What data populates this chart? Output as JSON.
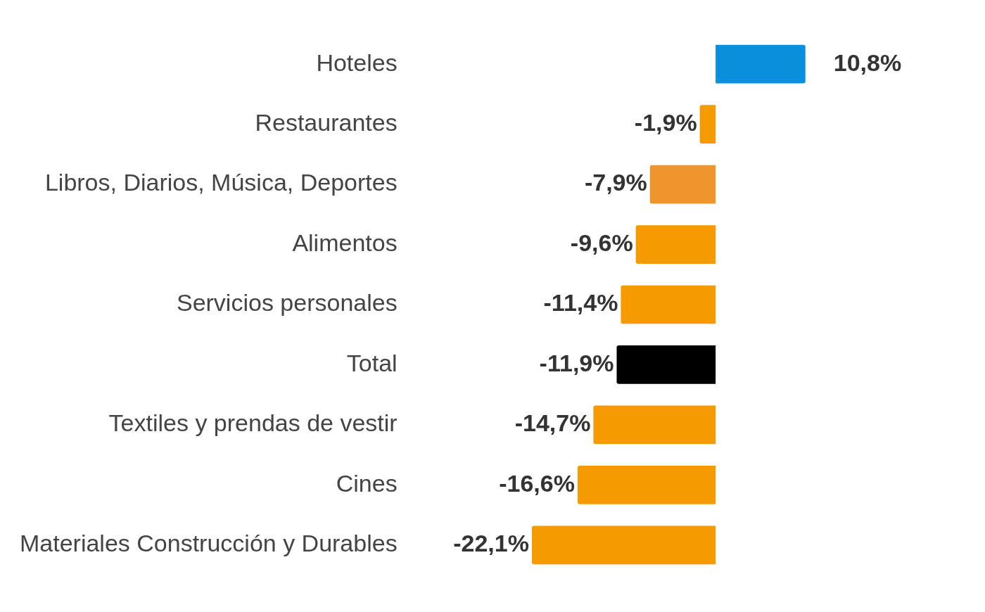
{
  "chart_data": {
    "type": "bar",
    "orientation": "horizontal",
    "categories": [
      "Hoteles",
      "Restaurantes",
      "Libros, Diarios, Música, Deportes",
      "Alimentos",
      "Servicios personales",
      "Total",
      "Textiles y prendas de vestir",
      "Cines",
      "Materiales Construcción y Durables"
    ],
    "values": [
      10.8,
      -1.9,
      -7.9,
      -9.6,
      -11.4,
      -11.9,
      -14.7,
      -16.6,
      -22.1
    ],
    "colors": [
      "#0a8fdc",
      "#f59a00",
      "#f0952b",
      "#f59a00",
      "#f59a00",
      "#000000",
      "#f59a00",
      "#f59a00",
      "#f59a00"
    ],
    "value_labels": [
      "10,8%",
      "-1,9%",
      "-7,9%",
      "-9,6%",
      "-11,4%",
      "-11,9%",
      "-14,7%",
      "-16,6%",
      "-22,1%"
    ],
    "legend": false
  }
}
